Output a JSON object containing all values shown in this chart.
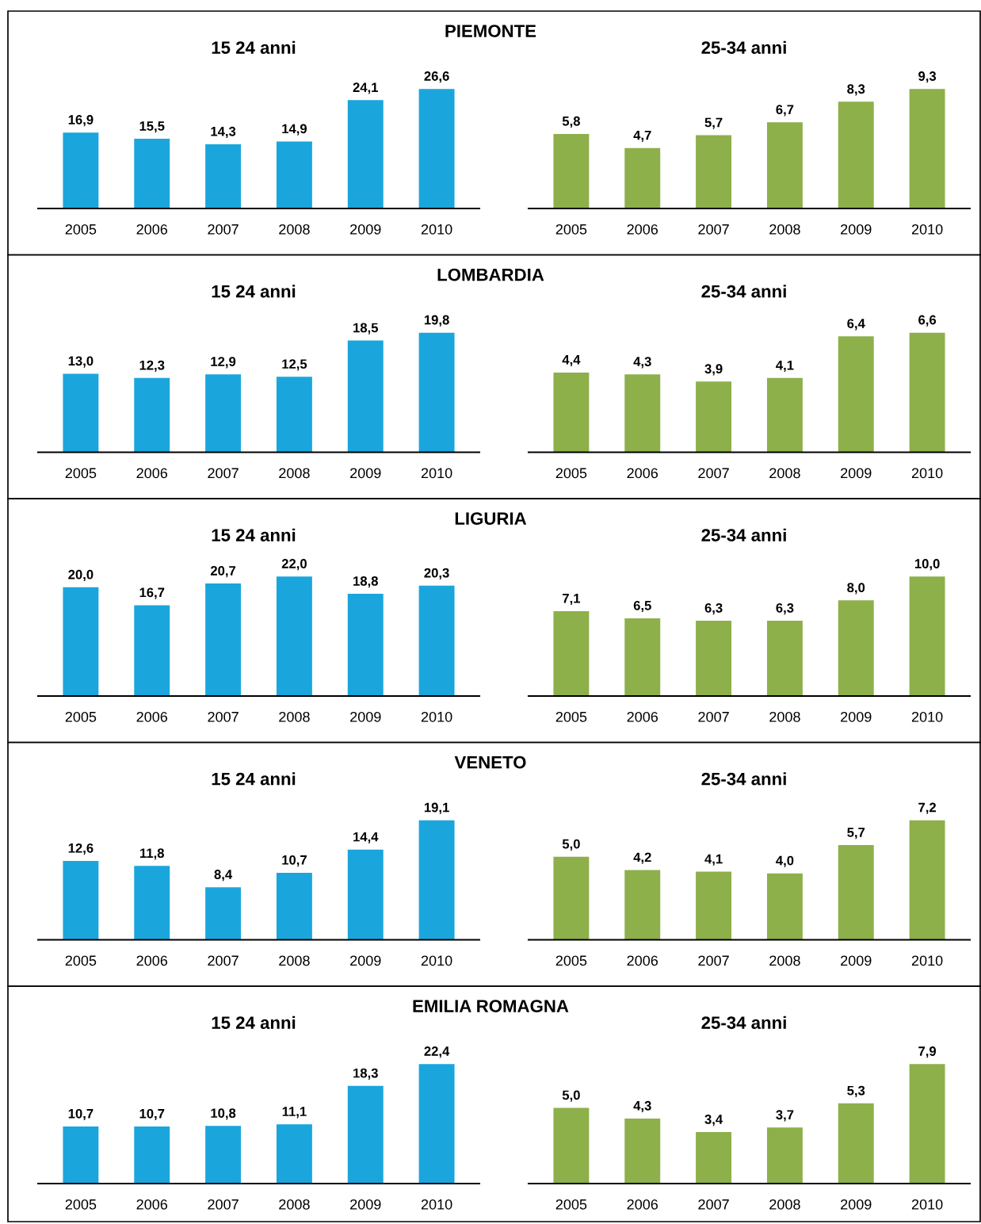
{
  "chart_data": [
    {
      "type": "other",
      "title": "PIEMONTE"
    },
    {
      "type": "bar",
      "title": "15 24 anni",
      "categories": [
        "2005",
        "2006",
        "2007",
        "2008",
        "2009",
        "2010"
      ],
      "values": [
        16.9,
        15.5,
        14.3,
        14.9,
        24.1,
        26.6
      ],
      "value_labels": [
        "16,9",
        "15,5",
        "14,3",
        "14,9",
        "24,1",
        "26,6"
      ],
      "color": "#1aa6dc"
    },
    {
      "type": "bar",
      "title": "25-34 anni",
      "categories": [
        "2005",
        "2006",
        "2007",
        "2008",
        "2009",
        "2010"
      ],
      "values": [
        5.8,
        4.7,
        5.7,
        6.7,
        8.3,
        9.3
      ],
      "value_labels": [
        "5,8",
        "4,7",
        "5,7",
        "6,7",
        "8,3",
        "9,3"
      ],
      "color": "#8db04a"
    },
    {
      "type": "other",
      "title": "LOMBARDIA"
    },
    {
      "type": "bar",
      "title": "15 24 anni",
      "categories": [
        "2005",
        "2006",
        "2007",
        "2008",
        "2009",
        "2010"
      ],
      "values": [
        13.0,
        12.3,
        12.9,
        12.5,
        18.5,
        19.8
      ],
      "value_labels": [
        "13,0",
        "12,3",
        "12,9",
        "12,5",
        "18,5",
        "19,8"
      ],
      "color": "#1aa6dc"
    },
    {
      "type": "bar",
      "title": "25-34 anni",
      "categories": [
        "2005",
        "2006",
        "2007",
        "2008",
        "2009",
        "2010"
      ],
      "values": [
        4.4,
        4.3,
        3.9,
        4.1,
        6.4,
        6.6
      ],
      "value_labels": [
        "4,4",
        "4,3",
        "3,9",
        "4,1",
        "6,4",
        "6,6"
      ],
      "color": "#8db04a"
    },
    {
      "type": "other",
      "title": "LIGURIA"
    },
    {
      "type": "bar",
      "title": "15 24 anni",
      "categories": [
        "2005",
        "2006",
        "2007",
        "2008",
        "2009",
        "2010"
      ],
      "values": [
        20.0,
        16.7,
        20.7,
        22.0,
        18.8,
        20.3
      ],
      "value_labels": [
        "20,0",
        "16,7",
        "20,7",
        "22,0",
        "18,8",
        "20,3"
      ],
      "color": "#1aa6dc"
    },
    {
      "type": "bar",
      "title": "25-34 anni",
      "categories": [
        "2005",
        "2006",
        "2007",
        "2008",
        "2009",
        "2010"
      ],
      "values": [
        7.1,
        6.5,
        6.3,
        6.3,
        8.0,
        10.0
      ],
      "value_labels": [
        "7,1",
        "6,5",
        "6,3",
        "6,3",
        "8,0",
        "10,0"
      ],
      "color": "#8db04a"
    },
    {
      "type": "other",
      "title": "VENETO"
    },
    {
      "type": "bar",
      "title": "15 24 anni",
      "categories": [
        "2005",
        "2006",
        "2007",
        "2008",
        "2009",
        "2010"
      ],
      "values": [
        12.6,
        11.8,
        8.4,
        10.7,
        14.4,
        19.1
      ],
      "value_labels": [
        "12,6",
        "11,8",
        "8,4",
        "10,7",
        "14,4",
        "19,1"
      ],
      "color": "#1aa6dc"
    },
    {
      "type": "bar",
      "title": "25-34 anni",
      "categories": [
        "2005",
        "2006",
        "2007",
        "2008",
        "2009",
        "2010"
      ],
      "values": [
        5.0,
        4.2,
        4.1,
        4.0,
        5.7,
        7.2
      ],
      "value_labels": [
        "5,0",
        "4,2",
        "4,1",
        "4,0",
        "5,7",
        "7,2"
      ],
      "color": "#8db04a"
    },
    {
      "type": "other",
      "title": "EMILIA ROMAGNA"
    },
    {
      "type": "bar",
      "title": "15 24 anni",
      "categories": [
        "2005",
        "2006",
        "2007",
        "2008",
        "2009",
        "2010"
      ],
      "values": [
        10.7,
        10.7,
        10.8,
        11.1,
        18.3,
        22.4
      ],
      "value_labels": [
        "10,7",
        "10,7",
        "10,8",
        "11,1",
        "18,3",
        "22,4"
      ],
      "color": "#1aa6dc"
    },
    {
      "type": "bar",
      "title": "25-34 anni",
      "categories": [
        "2005",
        "2006",
        "2007",
        "2008",
        "2009",
        "2010"
      ],
      "values": [
        5.0,
        4.3,
        3.4,
        3.7,
        5.3,
        7.9
      ],
      "value_labels": [
        "5,0",
        "4,3",
        "3,4",
        "3,7",
        "5,3",
        "7,9"
      ],
      "color": "#8db04a"
    }
  ]
}
